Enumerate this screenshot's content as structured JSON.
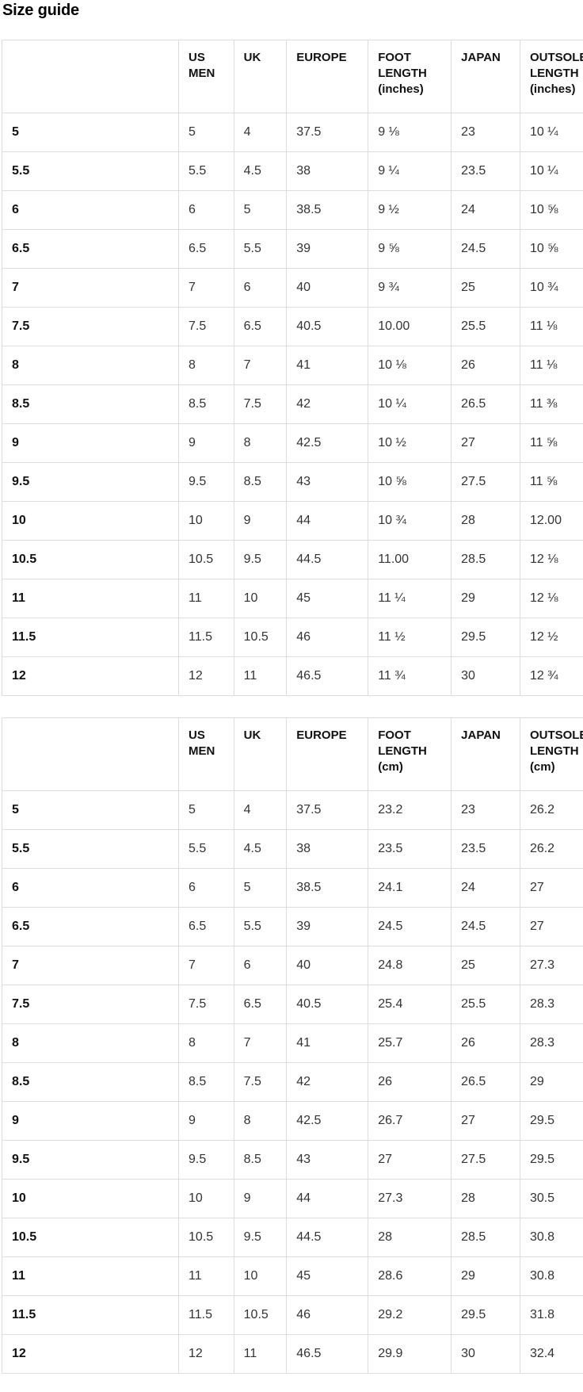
{
  "page": {
    "title": "Size guide"
  },
  "tables": [
    {
      "id": "inches",
      "columns": [
        "",
        "US MEN",
        "UK",
        "EUROPE",
        "FOOT LENGTH (inches)",
        "JAPAN",
        "OUTSOLE LENGTH (inches)"
      ],
      "rows": [
        [
          "5",
          "5",
          "4",
          "37.5",
          "9 ⅛",
          "23",
          "10 ¼"
        ],
        [
          "5.5",
          "5.5",
          "4.5",
          "38",
          "9 ¼",
          "23.5",
          "10 ¼"
        ],
        [
          "6",
          "6",
          "5",
          "38.5",
          "9 ½",
          "24",
          "10 ⅝"
        ],
        [
          "6.5",
          "6.5",
          "5.5",
          "39",
          "9 ⅝",
          "24.5",
          "10 ⅝"
        ],
        [
          "7",
          "7",
          "6",
          "40",
          "9 ¾",
          "25",
          "10 ¾"
        ],
        [
          "7.5",
          "7.5",
          "6.5",
          "40.5",
          "10.00",
          "25.5",
          "11 ⅛"
        ],
        [
          "8",
          "8",
          "7",
          "41",
          "10 ⅛",
          "26",
          "11 ⅛"
        ],
        [
          "8.5",
          "8.5",
          "7.5",
          "42",
          "10 ¼",
          "26.5",
          "11 ⅜"
        ],
        [
          "9",
          "9",
          "8",
          "42.5",
          "10 ½",
          "27",
          "11 ⅝"
        ],
        [
          "9.5",
          "9.5",
          "8.5",
          "43",
          "10 ⅝",
          "27.5",
          "11 ⅝"
        ],
        [
          "10",
          "10",
          "9",
          "44",
          "10 ¾",
          "28",
          "12.00"
        ],
        [
          "10.5",
          "10.5",
          "9.5",
          "44.5",
          "11.00",
          "28.5",
          "12 ⅛"
        ],
        [
          "11",
          "11",
          "10",
          "45",
          "11 ¼",
          "29",
          "12 ⅛"
        ],
        [
          "11.5",
          "11.5",
          "10.5",
          "46",
          "11 ½",
          "29.5",
          "12 ½"
        ],
        [
          "12",
          "12",
          "11",
          "46.5",
          "11 ¾",
          "30",
          "12 ¾"
        ]
      ]
    },
    {
      "id": "cm",
      "columns": [
        "",
        "US MEN",
        "UK",
        "EUROPE",
        "FOOT LENGTH (cm)",
        "JAPAN",
        "OUTSOLE LENGTH (cm)"
      ],
      "rows": [
        [
          "5",
          "5",
          "4",
          "37.5",
          "23.2",
          "23",
          "26.2"
        ],
        [
          "5.5",
          "5.5",
          "4.5",
          "38",
          "23.5",
          "23.5",
          "26.2"
        ],
        [
          "6",
          "6",
          "5",
          "38.5",
          "24.1",
          "24",
          "27"
        ],
        [
          "6.5",
          "6.5",
          "5.5",
          "39",
          "24.5",
          "24.5",
          "27"
        ],
        [
          "7",
          "7",
          "6",
          "40",
          "24.8",
          "25",
          "27.3"
        ],
        [
          "7.5",
          "7.5",
          "6.5",
          "40.5",
          "25.4",
          "25.5",
          "28.3"
        ],
        [
          "8",
          "8",
          "7",
          "41",
          "25.7",
          "26",
          "28.3"
        ],
        [
          "8.5",
          "8.5",
          "7.5",
          "42",
          "26",
          "26.5",
          "29"
        ],
        [
          "9",
          "9",
          "8",
          "42.5",
          "26.7",
          "27",
          "29.5"
        ],
        [
          "9.5",
          "9.5",
          "8.5",
          "43",
          "27",
          "27.5",
          "29.5"
        ],
        [
          "10",
          "10",
          "9",
          "44",
          "27.3",
          "28",
          "30.5"
        ],
        [
          "10.5",
          "10.5",
          "9.5",
          "44.5",
          "28",
          "28.5",
          "30.8"
        ],
        [
          "11",
          "11",
          "10",
          "45",
          "28.6",
          "29",
          "30.8"
        ],
        [
          "11.5",
          "11.5",
          "10.5",
          "46",
          "29.2",
          "29.5",
          "31.8"
        ],
        [
          "12",
          "12",
          "11",
          "46.5",
          "29.9",
          "30",
          "32.4"
        ]
      ]
    }
  ]
}
